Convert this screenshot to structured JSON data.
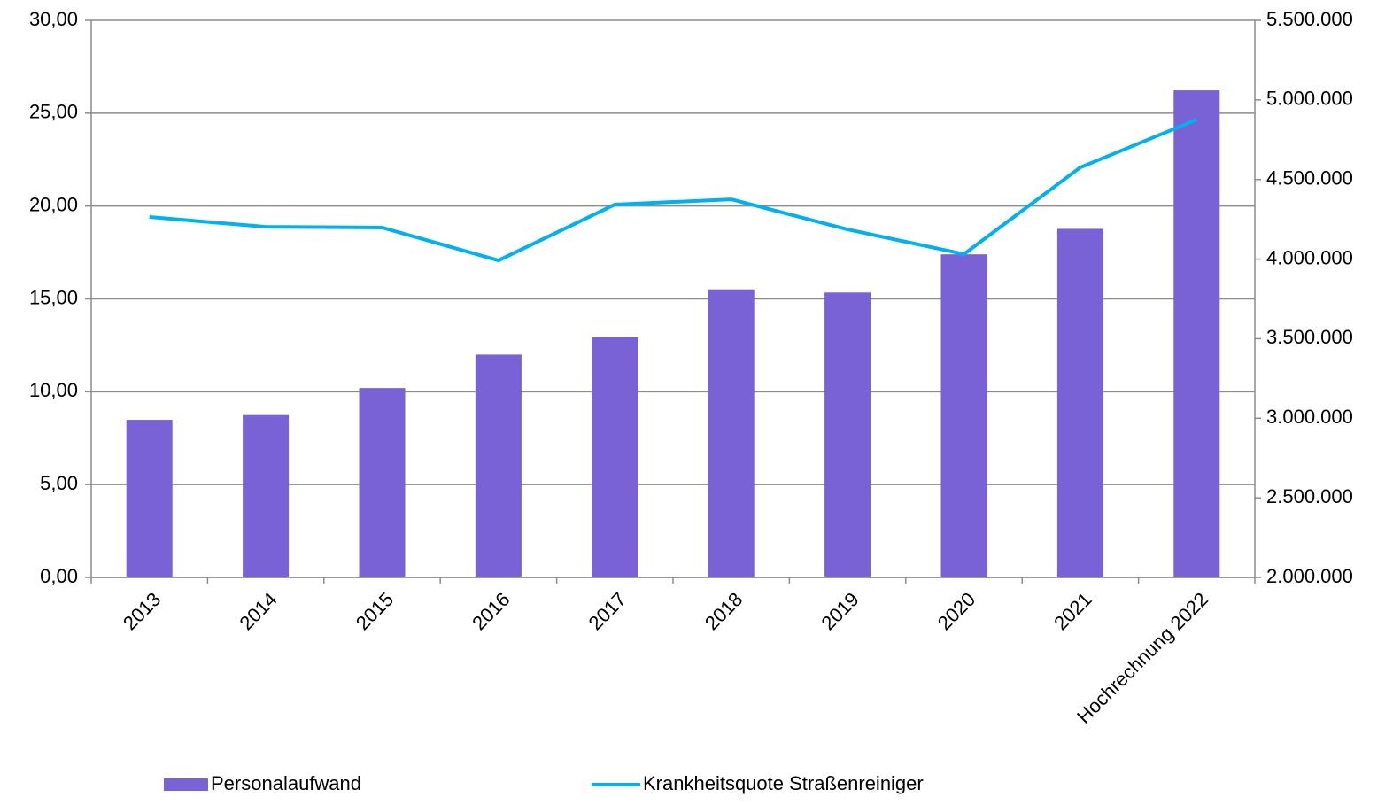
{
  "chart_data": {
    "type": "bar",
    "categories": [
      "2013",
      "2014",
      "2015",
      "2016",
      "2017",
      "2018",
      "2019",
      "2020",
      "2021",
      "Hochrechnung 2022"
    ],
    "series": [
      {
        "name": "Personalaufwand",
        "type": "bar",
        "axis": "y2",
        "color": "#7962d6",
        "values": [
          2990000,
          3020000,
          3190000,
          3400000,
          3510000,
          3810000,
          3790000,
          4030000,
          4190000,
          5060000
        ]
      },
      {
        "name": "Krankheitsquote Straßenreiniger",
        "type": "line",
        "axis": "y",
        "color": "#00b0f0",
        "values": [
          19.41,
          18.88,
          18.84,
          17.07,
          20.08,
          20.36,
          18.74,
          17.41,
          22.08,
          24.65
        ]
      }
    ],
    "ylim": [
      0,
      30
    ],
    "yticks": [
      {
        "value": 0,
        "label": "0,00"
      },
      {
        "value": 5,
        "label": "5,00"
      },
      {
        "value": 10,
        "label": "10,00"
      },
      {
        "value": 15,
        "label": "15,00"
      },
      {
        "value": 20,
        "label": "20,00"
      },
      {
        "value": 25,
        "label": "25,00"
      },
      {
        "value": 30,
        "label": "30,00"
      }
    ],
    "y2lim": [
      2000000,
      5500000
    ],
    "y2ticks": [
      {
        "value": 2000000,
        "label": "2.000.000"
      },
      {
        "value": 2500000,
        "label": "2.500.000"
      },
      {
        "value": 3000000,
        "label": "3.000.000"
      },
      {
        "value": 3500000,
        "label": "3.500.000"
      },
      {
        "value": 4000000,
        "label": "4.000.000"
      },
      {
        "value": 4500000,
        "label": "4.500.000"
      },
      {
        "value": 5000000,
        "label": "5.000.000"
      },
      {
        "value": 5500000,
        "label": "5.500.000"
      }
    ],
    "grid": true,
    "legend": "bottom"
  }
}
